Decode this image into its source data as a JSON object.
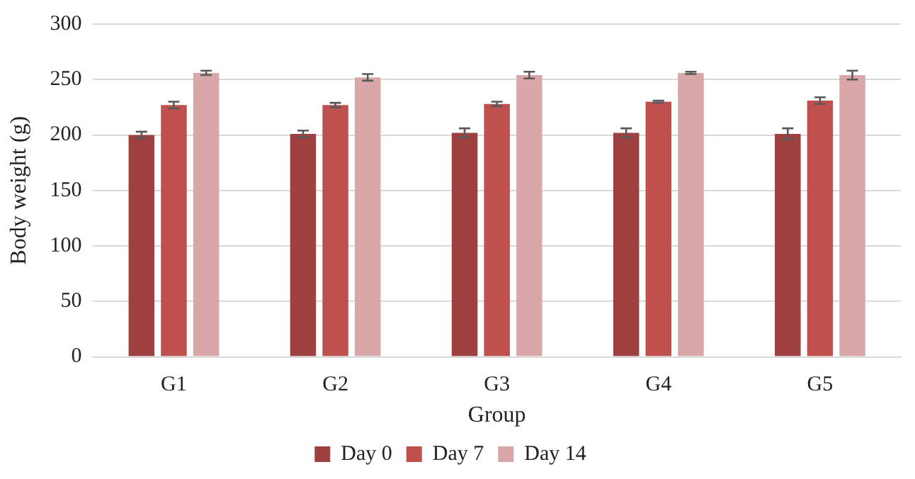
{
  "chart_data": {
    "type": "bar",
    "xlabel": "Group",
    "ylabel": "Body weight (g)",
    "categories": [
      "G1",
      "G2",
      "G3",
      "G4",
      "G5"
    ],
    "series": [
      {
        "name": "Day 0",
        "color": "#9e4040",
        "values": [
          200,
          201,
          202,
          202,
          201
        ],
        "errors": [
          3,
          3,
          4,
          4,
          5
        ]
      },
      {
        "name": "Day 7",
        "color": "#c0504d",
        "values": [
          227,
          227,
          228,
          230,
          231
        ],
        "errors": [
          3,
          2,
          2,
          1,
          3
        ]
      },
      {
        "name": "Day 14",
        "color": "#d9a7a7",
        "values": [
          256,
          252,
          254,
          256,
          254
        ],
        "errors": [
          2,
          3,
          3,
          1,
          4
        ]
      }
    ],
    "ylim": [
      0,
      300
    ],
    "yticks": [
      0,
      50,
      100,
      150,
      200,
      250,
      300
    ],
    "grid": "y",
    "legend": "bottom"
  }
}
